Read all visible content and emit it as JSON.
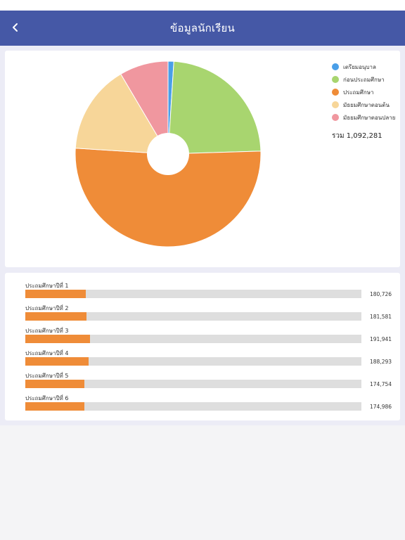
{
  "header": {
    "title": "ข้อมูลนักเรียน",
    "back_icon": "chevron-left-icon",
    "background": "#4558a6",
    "title_color": "#ffffff"
  },
  "chart_data": {
    "type": "pie",
    "categories": [
      "เตรียมอนุบาล",
      "ก่อนประถมศึกษา",
      "ประถมศึกษา",
      "มัธยมศึกษาตอนต้น",
      "มัธยมศึกษาตอนปลาย"
    ],
    "values": [
      1.0,
      23.5,
      51.5,
      15.5,
      8.5
    ],
    "colors": [
      "#4a9fe8",
      "#a8d56f",
      "#ef8c38",
      "#f7d699",
      "#f0979f"
    ],
    "legend_position": "right",
    "donut_hole": true
  },
  "summary": {
    "total_text": "รวม 1,092,281"
  },
  "grades": {
    "bar_color": "#ef8c38",
    "track_color": "#dedede",
    "items": [
      {
        "label": "ประถมศึกษาปีที่ 1",
        "value": 180726,
        "value_text": "180,726"
      },
      {
        "label": "ประถมศึกษาปีที่ 2",
        "value": 181581,
        "value_text": "181,581"
      },
      {
        "label": "ประถมศึกษาปีที่ 3",
        "value": 191941,
        "value_text": "191,941"
      },
      {
        "label": "ประถมศึกษาปีที่ 4",
        "value": 188293,
        "value_text": "188,293"
      },
      {
        "label": "ประถมศึกษาปีที่ 5",
        "value": 174754,
        "value_text": "174,754"
      },
      {
        "label": "ประถมศึกษาปีที่ 6",
        "value": 174986,
        "value_text": "174,986"
      }
    ]
  }
}
